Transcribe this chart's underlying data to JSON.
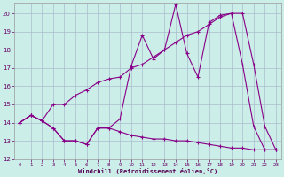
{
  "title": "Windchill (Refroidissement éolien,°C)",
  "background_color": "#cceee8",
  "grid_color": "#aabbcc",
  "line_color": "#880088",
  "xlim": [
    -0.5,
    23.5
  ],
  "ylim": [
    12,
    20.6
  ],
  "yticks": [
    12,
    13,
    14,
    15,
    16,
    17,
    18,
    19,
    20
  ],
  "xticks": [
    0,
    1,
    2,
    3,
    4,
    5,
    6,
    7,
    8,
    9,
    10,
    11,
    12,
    13,
    14,
    15,
    16,
    17,
    18,
    19,
    20,
    21,
    22,
    23
  ],
  "line1_x": [
    0,
    1,
    2,
    3,
    4,
    5,
    6,
    7,
    8,
    9,
    10,
    11,
    12,
    13,
    14,
    15,
    16,
    17,
    18,
    19,
    20,
    21,
    22,
    23
  ],
  "line1_y": [
    14.0,
    14.4,
    14.1,
    13.7,
    13.0,
    13.0,
    12.8,
    13.7,
    13.7,
    14.2,
    17.1,
    18.8,
    17.5,
    18.0,
    20.5,
    17.8,
    16.5,
    19.5,
    19.9,
    20.0,
    17.2,
    13.8,
    12.5,
    12.5
  ],
  "line2_x": [
    0,
    1,
    2,
    3,
    4,
    5,
    6,
    7,
    8,
    9,
    10,
    11,
    12,
    13,
    14,
    15,
    16,
    17,
    18,
    19,
    20,
    21,
    22,
    23
  ],
  "line2_y": [
    14.0,
    14.4,
    14.1,
    15.0,
    15.0,
    15.5,
    15.8,
    16.2,
    16.4,
    16.5,
    17.0,
    17.2,
    17.6,
    18.0,
    18.4,
    18.8,
    19.0,
    19.4,
    19.8,
    20.0,
    20.0,
    17.2,
    13.8,
    12.5
  ],
  "line3_x": [
    0,
    1,
    2,
    3,
    4,
    5,
    6,
    7,
    8,
    9,
    10,
    11,
    12,
    13,
    14,
    15,
    16,
    17,
    18,
    19,
    20,
    21,
    22,
    23
  ],
  "line3_y": [
    14.0,
    14.4,
    14.1,
    13.7,
    13.0,
    13.0,
    12.8,
    13.7,
    13.7,
    13.5,
    13.3,
    13.2,
    13.1,
    13.1,
    13.0,
    13.0,
    12.9,
    12.8,
    12.7,
    12.6,
    12.6,
    12.5,
    12.5,
    12.5
  ]
}
